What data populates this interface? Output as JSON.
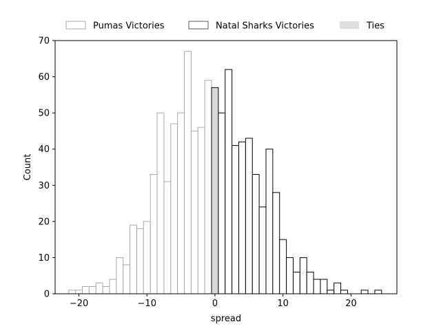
{
  "chart_data": {
    "type": "bar",
    "title": "",
    "xlabel": "spread",
    "ylabel": "Count",
    "xlim": [
      -23.5,
      26.75
    ],
    "ylim": [
      0,
      70
    ],
    "xticks": [
      -20,
      -10,
      0,
      10,
      20
    ],
    "yticks": [
      0,
      10,
      20,
      30,
      40,
      50,
      60,
      70
    ],
    "grid": false,
    "legend_position": "top",
    "bin_width": 1,
    "series": [
      {
        "name": "Pumas Victories",
        "fill": "#ffffff",
        "stroke": "#a8a8a8",
        "bins": [
          {
            "x": -21,
            "count": 1
          },
          {
            "x": -20,
            "count": 1
          },
          {
            "x": -19,
            "count": 2
          },
          {
            "x": -18,
            "count": 2
          },
          {
            "x": -17,
            "count": 3
          },
          {
            "x": -16,
            "count": 2
          },
          {
            "x": -15,
            "count": 4
          },
          {
            "x": -14,
            "count": 10
          },
          {
            "x": -13,
            "count": 8
          },
          {
            "x": -12,
            "count": 19
          },
          {
            "x": -11,
            "count": 18
          },
          {
            "x": -10,
            "count": 20
          },
          {
            "x": -9,
            "count": 33
          },
          {
            "x": -8,
            "count": 50
          },
          {
            "x": -7,
            "count": 31
          },
          {
            "x": -6,
            "count": 47
          },
          {
            "x": -5,
            "count": 50
          },
          {
            "x": -4,
            "count": 67
          },
          {
            "x": -3,
            "count": 45
          },
          {
            "x": -2,
            "count": 46
          },
          {
            "x": -1,
            "count": 59
          }
        ]
      },
      {
        "name": "Ties",
        "fill": "#d9d9d9",
        "stroke": "#000000",
        "bins": [
          {
            "x": 0,
            "count": 57
          }
        ]
      },
      {
        "name": "Natal Sharks Victories",
        "fill": "#ffffff",
        "stroke": "#000000",
        "bins": [
          {
            "x": 1,
            "count": 50
          },
          {
            "x": 2,
            "count": 62
          },
          {
            "x": 3,
            "count": 41
          },
          {
            "x": 4,
            "count": 42
          },
          {
            "x": 5,
            "count": 43
          },
          {
            "x": 6,
            "count": 33
          },
          {
            "x": 7,
            "count": 24
          },
          {
            "x": 8,
            "count": 40
          },
          {
            "x": 9,
            "count": 28
          },
          {
            "x": 10,
            "count": 15
          },
          {
            "x": 11,
            "count": 10
          },
          {
            "x": 12,
            "count": 6
          },
          {
            "x": 13,
            "count": 10
          },
          {
            "x": 14,
            "count": 6
          },
          {
            "x": 15,
            "count": 4
          },
          {
            "x": 16,
            "count": 4
          },
          {
            "x": 17,
            "count": 1
          },
          {
            "x": 18,
            "count": 3
          },
          {
            "x": 19,
            "count": 1
          },
          {
            "x": 22,
            "count": 1
          },
          {
            "x": 24,
            "count": 1
          }
        ]
      }
    ],
    "legend": [
      {
        "label": "Pumas Victories",
        "fill": "#ffffff",
        "stroke": "#a8a8a8"
      },
      {
        "label": "Natal Sharks Victories",
        "fill": "#ffffff",
        "stroke": "#555555"
      },
      {
        "label": "Ties",
        "fill": "#dedede",
        "stroke": "none"
      }
    ]
  }
}
